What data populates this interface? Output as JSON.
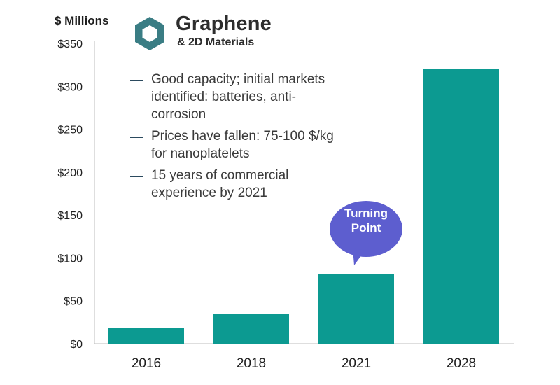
{
  "chart_data": {
    "type": "bar",
    "ylabel": "$ Millions",
    "categories": [
      "2016",
      "2018",
      "2021",
      "2028"
    ],
    "values": [
      18,
      35,
      81,
      320
    ],
    "ylim": [
      0,
      350
    ],
    "yticks": [
      "$0",
      "$50",
      "$100",
      "$150",
      "$200",
      "$250",
      "$300",
      "$350"
    ],
    "ytick_values": [
      0,
      50,
      100,
      150,
      200,
      250,
      300,
      350
    ],
    "grid": false,
    "bar_color": "#0c9a91"
  },
  "logo": {
    "title": "Graphene",
    "subtitle": "& 2D Materials",
    "icon": "hexagon-icon",
    "color": "#3a7d84"
  },
  "bullets": [
    "Good capacity; initial markets identified: batteries, anti-corrosion",
    "Prices have fallen: 75-100 $/kg for nanoplatelets",
    "15 years of commercial experience by 2021"
  ],
  "callout": {
    "line1": "Turning",
    "line2": "Point",
    "color": "#5d5ecf"
  }
}
